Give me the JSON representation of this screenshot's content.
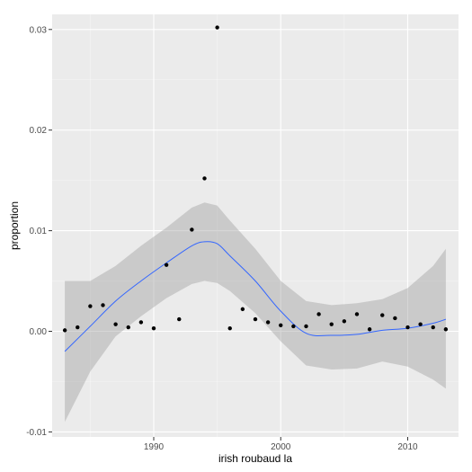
{
  "chart_data": {
    "type": "scatter",
    "title": "",
    "xlabel": "irish roubaud la",
    "ylabel": "proportion",
    "xlim": [
      1982,
      2014
    ],
    "ylim": [
      -0.0105,
      0.0315
    ],
    "x_ticks": [
      1990,
      2000,
      2010
    ],
    "x_tick_labels": [
      "1990",
      "2000",
      "2010"
    ],
    "y_ticks": [
      -0.01,
      0.0,
      0.01,
      0.02,
      0.03
    ],
    "y_tick_labels": [
      "-0.01",
      "0.00",
      "0.01",
      "0.02",
      "0.03"
    ],
    "grid": true,
    "points": [
      {
        "x": 1983,
        "y": 0.0001
      },
      {
        "x": 1984,
        "y": 0.0004
      },
      {
        "x": 1985,
        "y": 0.0025
      },
      {
        "x": 1986,
        "y": 0.0026
      },
      {
        "x": 1987,
        "y": 0.0007
      },
      {
        "x": 1988,
        "y": 0.0004
      },
      {
        "x": 1989,
        "y": 0.0009
      },
      {
        "x": 1990,
        "y": 0.0003
      },
      {
        "x": 1991,
        "y": 0.0066
      },
      {
        "x": 1992,
        "y": 0.0012
      },
      {
        "x": 1993,
        "y": 0.0101
      },
      {
        "x": 1994,
        "y": 0.0152
      },
      {
        "x": 1995,
        "y": 0.0302
      },
      {
        "x": 1996,
        "y": 0.0003
      },
      {
        "x": 1997,
        "y": 0.0022
      },
      {
        "x": 1998,
        "y": 0.0012
      },
      {
        "x": 1999,
        "y": 0.0009
      },
      {
        "x": 2000,
        "y": 0.0006
      },
      {
        "x": 2001,
        "y": 0.0005
      },
      {
        "x": 2002,
        "y": 0.0005
      },
      {
        "x": 2003,
        "y": 0.0017
      },
      {
        "x": 2004,
        "y": 0.0007
      },
      {
        "x": 2005,
        "y": 0.001
      },
      {
        "x": 2006,
        "y": 0.0017
      },
      {
        "x": 2007,
        "y": 0.0002
      },
      {
        "x": 2008,
        "y": 0.0016
      },
      {
        "x": 2009,
        "y": 0.0013
      },
      {
        "x": 2010,
        "y": 0.0004
      },
      {
        "x": 2011,
        "y": 0.0007
      },
      {
        "x": 2012,
        "y": 0.0004
      },
      {
        "x": 2013,
        "y": 0.0002
      }
    ],
    "smooth": {
      "x": [
        1983,
        1985,
        1987,
        1989,
        1991,
        1993,
        1994,
        1995,
        1996,
        1998,
        2000,
        2002,
        2004,
        2006,
        2008,
        2010,
        2012,
        2013
      ],
      "y": [
        -0.002,
        0.0005,
        0.003,
        0.005,
        0.0068,
        0.0085,
        0.0089,
        0.0087,
        0.0075,
        0.005,
        0.002,
        -0.0002,
        -0.0004,
        -0.0003,
        0.0001,
        0.0003,
        0.0008,
        0.0012
      ],
      "upper": [
        0.005,
        0.005,
        0.0065,
        0.0085,
        0.0103,
        0.0123,
        0.0128,
        0.0125,
        0.011,
        0.0082,
        0.005,
        0.003,
        0.0026,
        0.0028,
        0.0032,
        0.0043,
        0.0065,
        0.0082
      ],
      "lower": [
        -0.009,
        -0.004,
        -0.0005,
        0.0015,
        0.0033,
        0.0047,
        0.005,
        0.0048,
        0.004,
        0.0018,
        -0.001,
        -0.0034,
        -0.0038,
        -0.0037,
        -0.003,
        -0.0035,
        -0.0048,
        -0.0057
      ],
      "color": "#3366ff",
      "band_color": "#999999"
    },
    "colors": {
      "panel": "#ebebeb",
      "grid": "#ffffff",
      "point": "#000000"
    }
  }
}
